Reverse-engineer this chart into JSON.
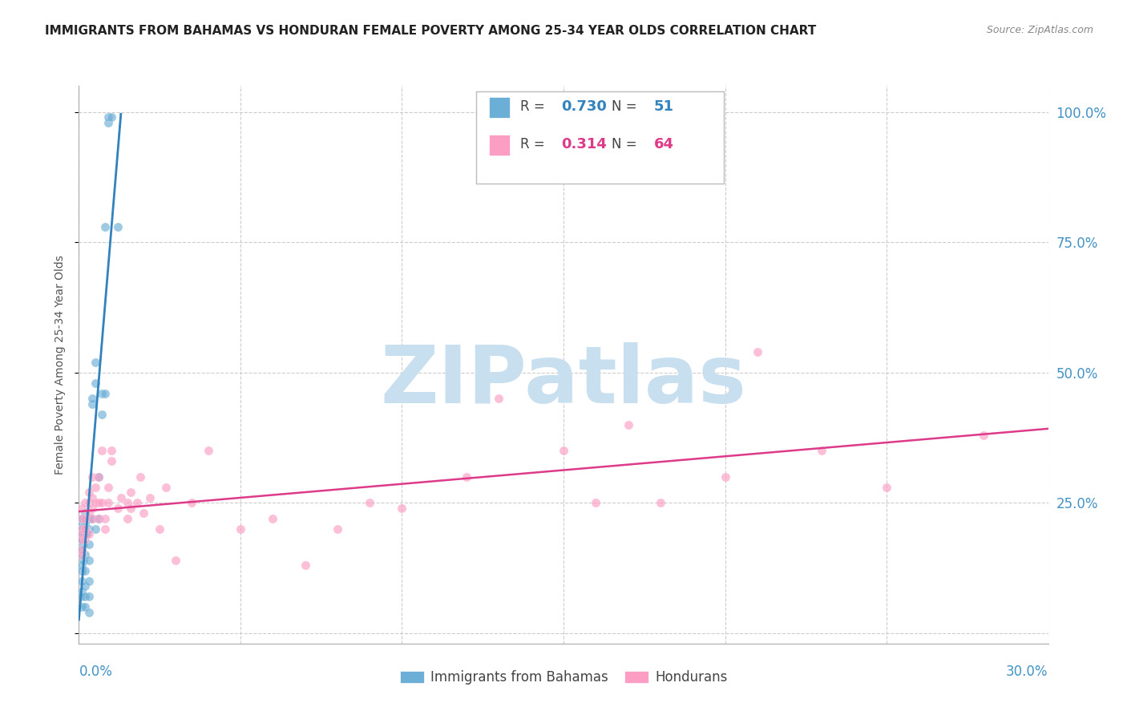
{
  "title": "IMMIGRANTS FROM BAHAMAS VS HONDURAN FEMALE POVERTY AMONG 25-34 YEAR OLDS CORRELATION CHART",
  "source": "Source: ZipAtlas.com",
  "ylabel": "Female Poverty Among 25-34 Year Olds",
  "right_yticklabels": [
    "",
    "25.0%",
    "50.0%",
    "75.0%",
    "100.0%"
  ],
  "right_yticks": [
    0.0,
    0.25,
    0.5,
    0.75,
    1.0
  ],
  "legend_blue_R": "0.730",
  "legend_blue_N": "51",
  "legend_pink_R": "0.314",
  "legend_pink_N": "64",
  "blue_color": "#6baed6",
  "blue_line_color": "#3182bd",
  "pink_color": "#fc9dc4",
  "pink_line_color": "#de3a8a",
  "xlim": [
    0.0,
    0.3
  ],
  "ylim": [
    -0.02,
    1.05
  ],
  "xticks": [
    0.0,
    0.05,
    0.1,
    0.15,
    0.2,
    0.25,
    0.3
  ],
  "yticks": [
    0.0,
    0.25,
    0.5,
    0.75,
    1.0
  ],
  "grid_color": "#cccccc",
  "background_color": "#ffffff",
  "watermark": "ZIPatlas",
  "watermark_color": "#c8dff0",
  "title_fontsize": 11,
  "axis_label_color": "#555555",
  "blue_scatter_x": [
    0.0003,
    0.0005,
    0.0008,
    0.001,
    0.001,
    0.001,
    0.001,
    0.001,
    0.001,
    0.001,
    0.001,
    0.001,
    0.001,
    0.0012,
    0.0013,
    0.0015,
    0.0015,
    0.0015,
    0.0015,
    0.002,
    0.002,
    0.002,
    0.002,
    0.002,
    0.002,
    0.002,
    0.002,
    0.0025,
    0.003,
    0.003,
    0.003,
    0.003,
    0.003,
    0.003,
    0.003,
    0.004,
    0.004,
    0.004,
    0.005,
    0.005,
    0.005,
    0.006,
    0.006,
    0.007,
    0.007,
    0.008,
    0.008,
    0.009,
    0.009,
    0.01,
    0.012
  ],
  "blue_scatter_y": [
    0.18,
    0.2,
    0.15,
    0.22,
    0.19,
    0.16,
    0.13,
    0.12,
    0.1,
    0.08,
    0.07,
    0.05,
    0.18,
    0.21,
    0.17,
    0.22,
    0.2,
    0.19,
    0.14,
    0.23,
    0.21,
    0.19,
    0.15,
    0.12,
    0.09,
    0.07,
    0.05,
    0.19,
    0.22,
    0.2,
    0.17,
    0.14,
    0.1,
    0.07,
    0.04,
    0.44,
    0.45,
    0.22,
    0.48,
    0.52,
    0.2,
    0.3,
    0.22,
    0.46,
    0.42,
    0.78,
    0.46,
    0.98,
    0.99,
    0.99,
    0.78
  ],
  "pink_scatter_x": [
    0.001,
    0.001,
    0.001,
    0.001,
    0.001,
    0.001,
    0.001,
    0.002,
    0.002,
    0.002,
    0.002,
    0.003,
    0.003,
    0.003,
    0.003,
    0.004,
    0.004,
    0.004,
    0.004,
    0.005,
    0.005,
    0.006,
    0.006,
    0.006,
    0.007,
    0.007,
    0.008,
    0.008,
    0.009,
    0.009,
    0.01,
    0.01,
    0.012,
    0.013,
    0.015,
    0.015,
    0.016,
    0.016,
    0.018,
    0.019,
    0.02,
    0.022,
    0.025,
    0.027,
    0.03,
    0.035,
    0.04,
    0.05,
    0.06,
    0.07,
    0.08,
    0.09,
    0.1,
    0.12,
    0.13,
    0.15,
    0.16,
    0.17,
    0.18,
    0.2,
    0.21,
    0.23,
    0.25,
    0.28
  ],
  "pink_scatter_y": [
    0.18,
    0.2,
    0.22,
    0.15,
    0.16,
    0.19,
    0.24,
    0.2,
    0.18,
    0.25,
    0.22,
    0.19,
    0.23,
    0.25,
    0.27,
    0.22,
    0.24,
    0.26,
    0.3,
    0.25,
    0.28,
    0.22,
    0.25,
    0.3,
    0.25,
    0.35,
    0.2,
    0.22,
    0.25,
    0.28,
    0.33,
    0.35,
    0.24,
    0.26,
    0.22,
    0.25,
    0.24,
    0.27,
    0.25,
    0.3,
    0.23,
    0.26,
    0.2,
    0.28,
    0.14,
    0.25,
    0.35,
    0.2,
    0.22,
    0.13,
    0.2,
    0.25,
    0.24,
    0.3,
    0.45,
    0.35,
    0.25,
    0.4,
    0.25,
    0.3,
    0.54,
    0.35,
    0.28,
    0.38
  ]
}
